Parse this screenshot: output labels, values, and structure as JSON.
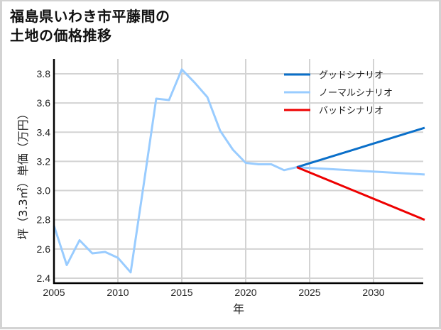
{
  "title_line1": "福島県いわき市平藤間の",
  "title_line2": "土地の価格推移",
  "chart_data": {
    "type": "line",
    "title": "福島県いわき市平藤間の土地の価格推移",
    "xlabel": "年",
    "ylabel": "坪（3.3㎡）単価（万円）",
    "xlim": [
      2005,
      2034
    ],
    "ylim": [
      2.38,
      3.9
    ],
    "x_ticks": [
      2005,
      2010,
      2015,
      2020,
      2025,
      2030
    ],
    "y_ticks": [
      2.4,
      2.6,
      2.8,
      3.0,
      3.2,
      3.4,
      3.6,
      3.8
    ],
    "y_tick_labels": [
      "2.4",
      "2.6",
      "2.8",
      "3.0",
      "3.2",
      "3.4",
      "3.6",
      "3.8"
    ],
    "grid": true,
    "legend_position": "upper right",
    "series": [
      {
        "name": "グッドシナリオ",
        "color": "#0a6fc9",
        "x": [
          2024,
          2034
        ],
        "values": [
          3.16,
          3.43
        ]
      },
      {
        "name": "ノーマルシナリオ",
        "color": "#99ccff",
        "x": [
          2005,
          2006,
          2007,
          2008,
          2009,
          2010,
          2011,
          2012,
          2013,
          2014,
          2015,
          2016,
          2017,
          2018,
          2019,
          2020,
          2021,
          2022,
          2023,
          2024,
          2034
        ],
        "values": [
          2.76,
          2.49,
          2.66,
          2.57,
          2.58,
          2.54,
          2.44,
          3.03,
          3.63,
          3.62,
          3.83,
          3.74,
          3.64,
          3.41,
          3.28,
          3.19,
          3.18,
          3.18,
          3.14,
          3.16,
          3.11
        ]
      },
      {
        "name": "バッドシナリオ",
        "color": "#ee0000",
        "x": [
          2024,
          2034
        ],
        "values": [
          3.16,
          2.8
        ]
      }
    ]
  }
}
